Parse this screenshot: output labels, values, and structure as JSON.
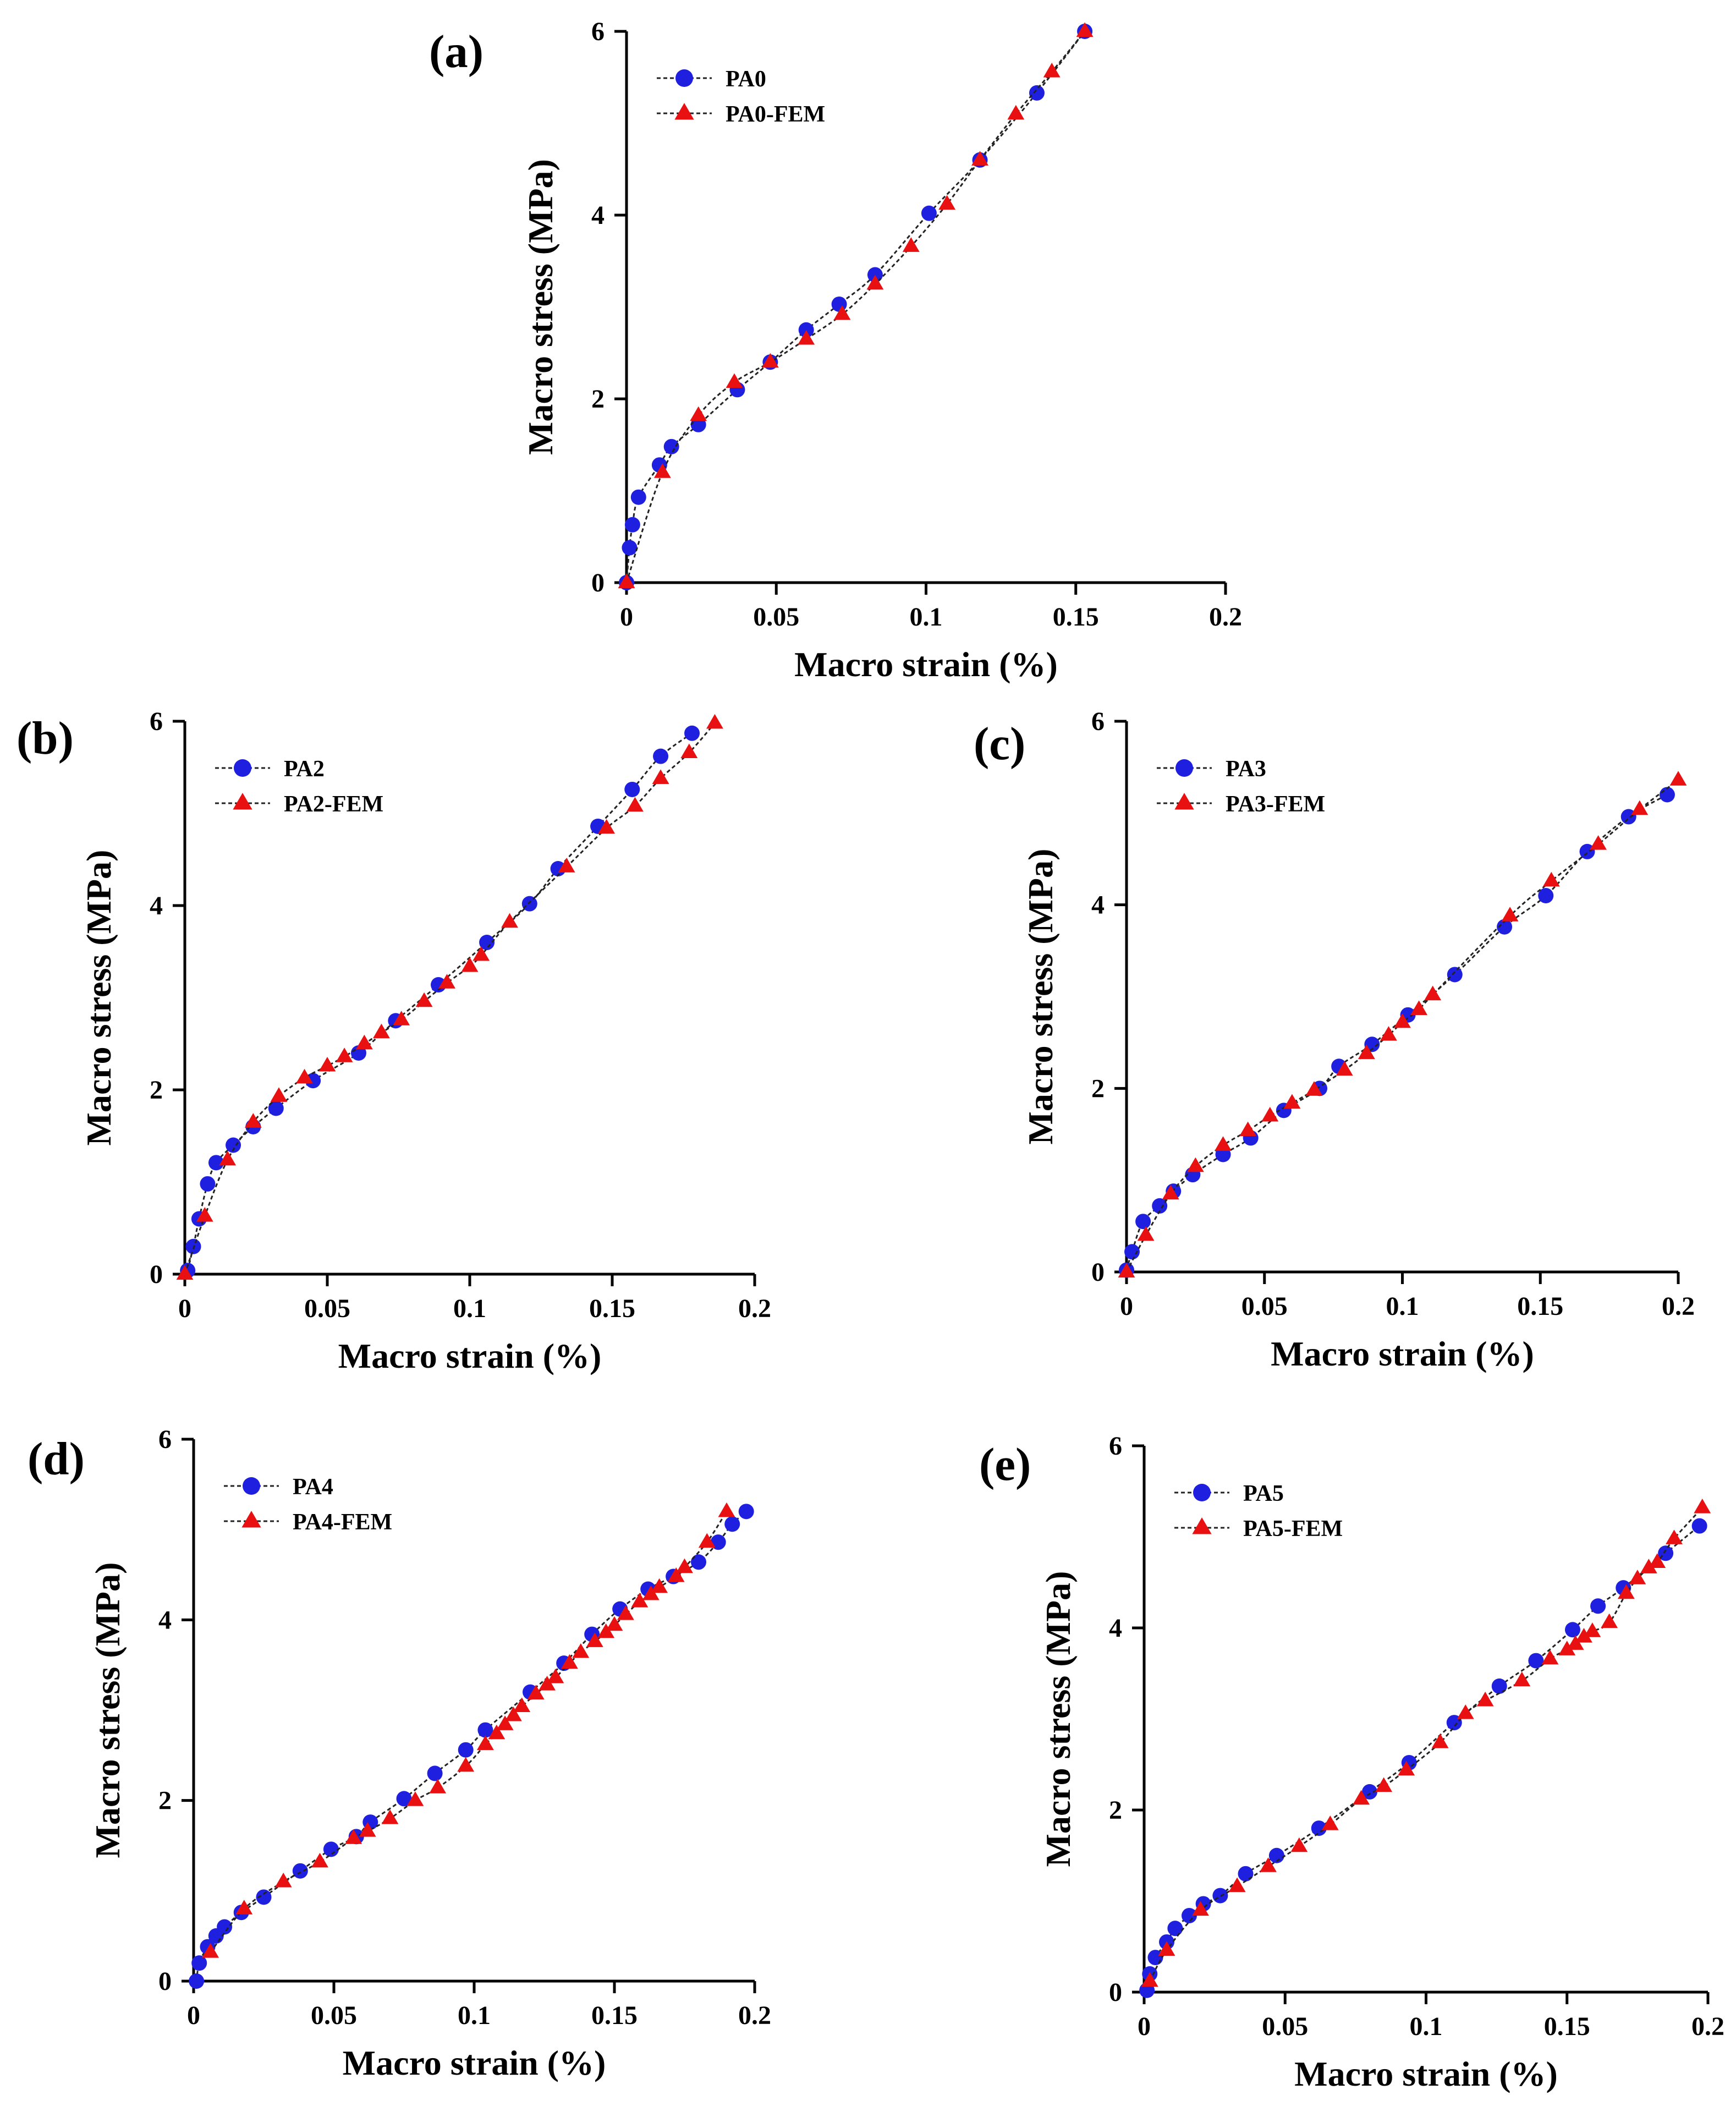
{
  "figure": {
    "marker_colors": {
      "measured": "#1f1fe0",
      "fem": "#e81010"
    },
    "line_color": "#222222"
  },
  "chart_data": [
    {
      "panel": "(a)",
      "type": "line",
      "xlabel": "Macro strain (%)",
      "ylabel": "Macro stress (MPa)",
      "xlim": [
        0,
        0.2
      ],
      "ylim": [
        0,
        6
      ],
      "xticks": [
        0,
        0.05,
        0.1,
        0.15,
        0.2
      ],
      "xtick_labels": [
        "0",
        "0.05",
        "0.1",
        "0.15",
        "0.2"
      ],
      "yticks": [
        0,
        2,
        4,
        6
      ],
      "ytick_labels": [
        "0",
        "2",
        "4",
        "6"
      ],
      "series": [
        {
          "name": "PA0",
          "marker": "circle",
          "x": [
            0,
            0.001,
            0.002,
            0.004,
            0.011,
            0.015,
            0.024,
            0.037,
            0.048,
            0.06,
            0.071,
            0.083,
            0.101,
            0.118,
            0.137,
            0.153
          ],
          "y": [
            0,
            0.38,
            0.63,
            0.93,
            1.28,
            1.48,
            1.72,
            2.1,
            2.4,
            2.75,
            3.03,
            3.35,
            4.02,
            4.6,
            5.33,
            6.0
          ]
        },
        {
          "name": "PA0-FEM",
          "marker": "triangle",
          "x": [
            0,
            0.012,
            0.024,
            0.036,
            0.048,
            0.06,
            0.072,
            0.083,
            0.095,
            0.107,
            0.118,
            0.13,
            0.142,
            0.153
          ],
          "y": [
            0,
            1.2,
            1.82,
            2.18,
            2.4,
            2.65,
            2.92,
            3.25,
            3.66,
            4.12,
            4.6,
            5.1,
            5.56,
            6.0
          ]
        }
      ]
    },
    {
      "panel": "(b)",
      "type": "line",
      "xlabel": "Macro strain (%)",
      "ylabel": "Macro stress (MPa)",
      "xlim": [
        0,
        0.2
      ],
      "ylim": [
        0,
        6
      ],
      "xticks": [
        0,
        0.05,
        0.1,
        0.15,
        0.2
      ],
      "xtick_labels": [
        "0",
        "0.05",
        "0.1",
        "0.15",
        "0.2"
      ],
      "yticks": [
        0,
        2,
        4,
        6
      ],
      "ytick_labels": [
        "0",
        "2",
        "4",
        "6"
      ],
      "series": [
        {
          "name": "PA2",
          "marker": "circle",
          "x": [
            0.001,
            0.003,
            0.005,
            0.008,
            0.011,
            0.017,
            0.024,
            0.032,
            0.045,
            0.061,
            0.074,
            0.089,
            0.106,
            0.121,
            0.131,
            0.145,
            0.157,
            0.167,
            0.178
          ],
          "y": [
            0.04,
            0.3,
            0.6,
            0.98,
            1.21,
            1.4,
            1.6,
            1.8,
            2.1,
            2.4,
            2.75,
            3.14,
            3.6,
            4.02,
            4.4,
            4.86,
            5.26,
            5.62,
            5.87
          ]
        },
        {
          "name": "PA2-FEM",
          "marker": "triangle",
          "x": [
            0,
            0.007,
            0.015,
            0.024,
            0.033,
            0.042,
            0.05,
            0.056,
            0.063,
            0.069,
            0.076,
            0.084,
            0.092,
            0.1,
            0.104,
            0.114,
            0.134,
            0.148,
            0.158,
            0.167,
            0.177,
            0.186
          ],
          "y": [
            0,
            0.63,
            1.24,
            1.65,
            1.93,
            2.13,
            2.26,
            2.36,
            2.5,
            2.62,
            2.76,
            2.96,
            3.16,
            3.34,
            3.46,
            3.82,
            4.42,
            4.84,
            5.08,
            5.38,
            5.66,
            5.98
          ]
        }
      ]
    },
    {
      "panel": "(c)",
      "type": "line",
      "xlabel": "Macro strain (%)",
      "ylabel": "Macro stress (MPa)",
      "xlim": [
        0,
        0.2
      ],
      "ylim": [
        0,
        6
      ],
      "xticks": [
        0,
        0.05,
        0.1,
        0.15,
        0.2
      ],
      "xtick_labels": [
        "0",
        "0.05",
        "0.1",
        "0.15",
        "0.2"
      ],
      "yticks": [
        0,
        2,
        4,
        6
      ],
      "ytick_labels": [
        "0",
        "2",
        "4",
        "6"
      ],
      "series": [
        {
          "name": "PA3",
          "marker": "circle",
          "x": [
            0,
            0.002,
            0.006,
            0.012,
            0.017,
            0.024,
            0.035,
            0.045,
            0.057,
            0.07,
            0.077,
            0.089,
            0.102,
            0.119,
            0.137,
            0.152,
            0.167,
            0.182,
            0.196
          ],
          "y": [
            0.02,
            0.22,
            0.55,
            0.72,
            0.88,
            1.06,
            1.28,
            1.46,
            1.76,
            2.0,
            2.24,
            2.48,
            2.8,
            3.24,
            3.76,
            4.1,
            4.58,
            4.96,
            5.2
          ]
        },
        {
          "name": "PA3-FEM",
          "marker": "triangle",
          "x": [
            0,
            0.007,
            0.016,
            0.025,
            0.035,
            0.044,
            0.052,
            0.06,
            0.068,
            0.079,
            0.087,
            0.095,
            0.1,
            0.106,
            0.111,
            0.139,
            0.154,
            0.171,
            0.186,
            0.2
          ],
          "y": [
            0,
            0.4,
            0.85,
            1.15,
            1.38,
            1.54,
            1.7,
            1.84,
            1.98,
            2.2,
            2.38,
            2.58,
            2.72,
            2.86,
            3.02,
            3.88,
            4.26,
            4.66,
            5.04,
            5.36
          ]
        }
      ]
    },
    {
      "panel": "(d)",
      "type": "line",
      "xlabel": "Macro strain (%)",
      "ylabel": "Macro stress (MPa)",
      "xlim": [
        0,
        0.2
      ],
      "ylim": [
        0,
        6
      ],
      "xticks": [
        0,
        0.05,
        0.1,
        0.15,
        0.2
      ],
      "xtick_labels": [
        "0",
        "0.05",
        "0.1",
        "0.15",
        "0.2"
      ],
      "yticks": [
        0,
        2,
        4,
        6
      ],
      "ytick_labels": [
        "0",
        "2",
        "4",
        "6"
      ],
      "series": [
        {
          "name": "PA4",
          "marker": "circle",
          "x": [
            0.001,
            0.002,
            0.005,
            0.008,
            0.011,
            0.017,
            0.025,
            0.038,
            0.049,
            0.058,
            0.063,
            0.075,
            0.086,
            0.097,
            0.104,
            0.12,
            0.132,
            0.142,
            0.152,
            0.162,
            0.171,
            0.18,
            0.187,
            0.192,
            0.197
          ],
          "y": [
            0,
            0.2,
            0.38,
            0.5,
            0.6,
            0.76,
            0.93,
            1.22,
            1.46,
            1.6,
            1.76,
            2.02,
            2.3,
            2.56,
            2.78,
            3.2,
            3.52,
            3.84,
            4.12,
            4.34,
            4.48,
            4.64,
            4.86,
            5.06,
            5.2
          ]
        },
        {
          "name": "PA4-FEM",
          "marker": "triangle",
          "x": [
            0.006,
            0.018,
            0.032,
            0.045,
            0.057,
            0.062,
            0.07,
            0.079,
            0.087,
            0.097,
            0.104,
            0.108,
            0.111,
            0.114,
            0.117,
            0.122,
            0.126,
            0.129,
            0.134,
            0.138,
            0.143,
            0.147,
            0.15,
            0.154,
            0.159,
            0.163,
            0.166,
            0.172,
            0.175,
            0.183,
            0.19
          ],
          "y": [
            0.32,
            0.8,
            1.1,
            1.32,
            1.58,
            1.66,
            1.8,
            2.0,
            2.14,
            2.38,
            2.62,
            2.74,
            2.84,
            2.94,
            3.04,
            3.18,
            3.28,
            3.36,
            3.52,
            3.64,
            3.76,
            3.86,
            3.94,
            4.06,
            4.2,
            4.28,
            4.36,
            4.48,
            4.58,
            4.86,
            5.2
          ]
        }
      ]
    },
    {
      "panel": "(e)",
      "type": "line",
      "xlabel": "Macro strain (%)",
      "ylabel": "Macro stress (MPa)",
      "xlim": [
        0,
        0.2
      ],
      "ylim": [
        0,
        6
      ],
      "xticks": [
        0,
        0.05,
        0.1,
        0.15,
        0.2
      ],
      "xtick_labels": [
        "0",
        "0.05",
        "0.1",
        "0.15",
        "0.2"
      ],
      "yticks": [
        0,
        2,
        4,
        6
      ],
      "ytick_labels": [
        "0",
        "2",
        "4",
        "6"
      ],
      "series": [
        {
          "name": "PA5",
          "marker": "circle",
          "x": [
            0.001,
            0.002,
            0.004,
            0.008,
            0.011,
            0.016,
            0.021,
            0.027,
            0.036,
            0.047,
            0.062,
            0.08,
            0.094,
            0.11,
            0.126,
            0.139,
            0.152,
            0.161,
            0.17,
            0.185,
            0.197
          ],
          "y": [
            0.02,
            0.2,
            0.38,
            0.55,
            0.7,
            0.84,
            0.97,
            1.06,
            1.3,
            1.5,
            1.8,
            2.2,
            2.52,
            2.96,
            3.36,
            3.64,
            3.98,
            4.24,
            4.44,
            4.82,
            5.12
          ]
        },
        {
          "name": "PA5-FEM",
          "marker": "triangle",
          "x": [
            0.002,
            0.008,
            0.02,
            0.033,
            0.044,
            0.055,
            0.066,
            0.077,
            0.085,
            0.093,
            0.105,
            0.114,
            0.121,
            0.134,
            0.144,
            0.15,
            0.153,
            0.156,
            0.159,
            0.165,
            0.171,
            0.175,
            0.179,
            0.182,
            0.188,
            0.198
          ],
          "y": [
            0.12,
            0.46,
            0.9,
            1.16,
            1.38,
            1.6,
            1.84,
            2.12,
            2.26,
            2.44,
            2.74,
            3.06,
            3.2,
            3.42,
            3.66,
            3.76,
            3.82,
            3.9,
            3.96,
            4.06,
            4.38,
            4.54,
            4.66,
            4.72,
            4.98,
            5.32
          ]
        }
      ]
    }
  ]
}
